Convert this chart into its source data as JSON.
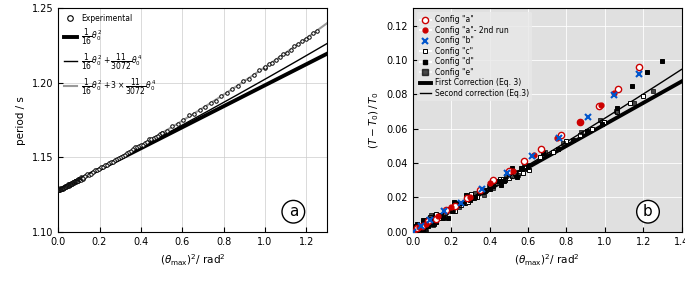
{
  "panel_a": {
    "T0": 1.1279,
    "ylim": [
      1.1,
      1.25
    ],
    "xlim": [
      0,
      1.3
    ],
    "yticks": [
      1.1,
      1.15,
      1.2,
      1.25
    ],
    "xticks": [
      0,
      0.2,
      0.4,
      0.6,
      0.8,
      1.0,
      1.2
    ],
    "ylabel": "period / s",
    "xlabel": "($\\theta_{\\max})^2$/ rad$^2$"
  },
  "panel_b": {
    "ylim": [
      0,
      0.13
    ],
    "xlim": [
      0,
      1.4
    ],
    "yticks": [
      0,
      0.02,
      0.04,
      0.06,
      0.08,
      0.1,
      0.12
    ],
    "xticks": [
      0,
      0.2,
      0.4,
      0.6,
      0.8,
      1.0,
      1.2,
      1.4
    ],
    "ylabel": "$(T-T_0)\\,/\\,T_0$",
    "xlabel": "($\\theta_{\\max})^2$/ rad$^2$",
    "bg_color": "#e0e0e0"
  }
}
